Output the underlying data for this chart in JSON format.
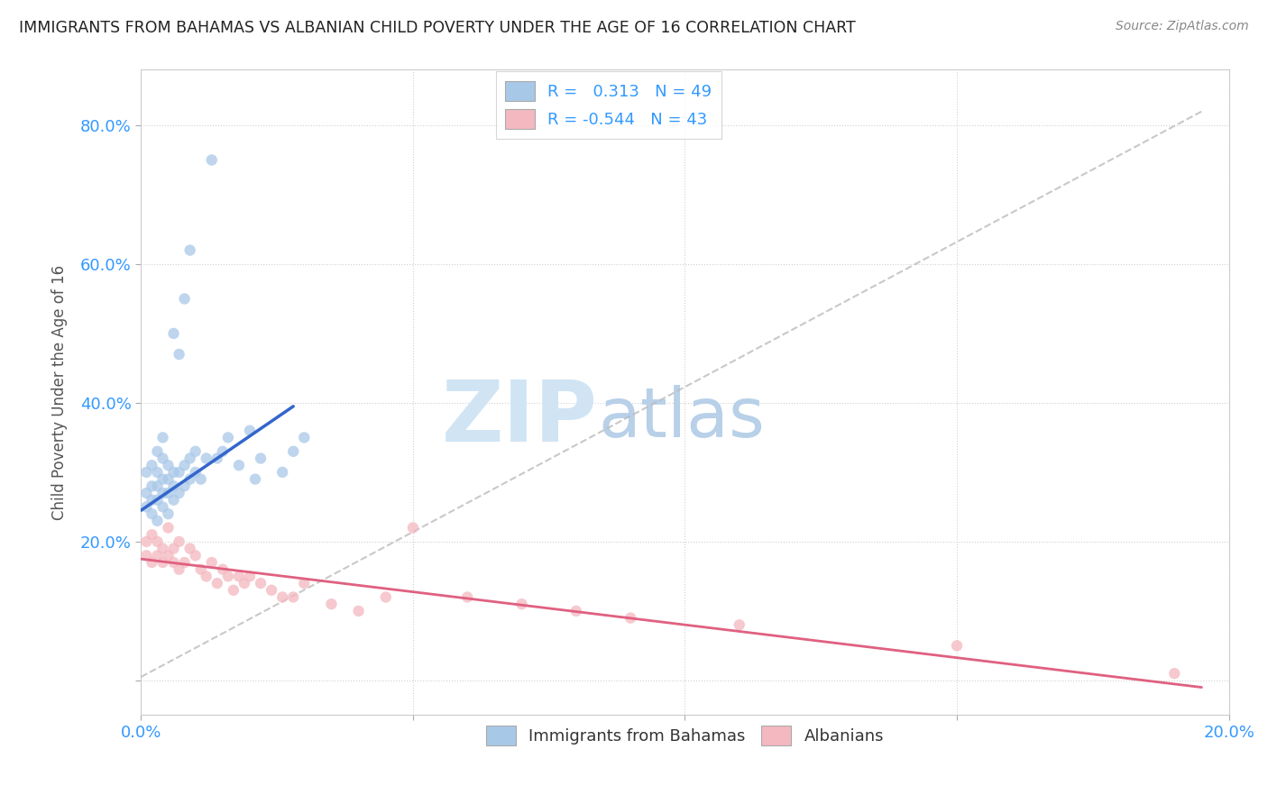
{
  "title": "IMMIGRANTS FROM BAHAMAS VS ALBANIAN CHILD POVERTY UNDER THE AGE OF 16 CORRELATION CHART",
  "source": "Source: ZipAtlas.com",
  "ylabel": "Child Poverty Under the Age of 16",
  "xlim": [
    0.0,
    0.2
  ],
  "ylim": [
    -0.05,
    0.88
  ],
  "xticks": [
    0.0,
    0.05,
    0.1,
    0.15,
    0.2
  ],
  "yticks": [
    0.0,
    0.2,
    0.4,
    0.6,
    0.8
  ],
  "xtick_labels": [
    "0.0%",
    "",
    "",
    "",
    "20.0%"
  ],
  "ytick_labels": [
    "",
    "20.0%",
    "40.0%",
    "60.0%",
    "80.0%"
  ],
  "r1": 0.313,
  "n1": 49,
  "r2": -0.544,
  "n2": 43,
  "series1_color": "#a8c8e8",
  "series2_color": "#f4b8c0",
  "trendline1_color": "#3366cc",
  "trendline2_color": "#e06080",
  "gray_dash_color": "#bbbbbb",
  "background_color": "#ffffff",
  "grid_color": "#cccccc",
  "watermark_zip": "ZIP",
  "watermark_atlas": "atlas",
  "watermark_color_zip": "#d0e4f4",
  "watermark_color_atlas": "#b8d0e8",
  "title_color": "#222222",
  "axis_label_color": "#555555",
  "tick_color": "#3399ff",
  "legend_label1": "Immigrants from Bahamas",
  "legend_label2": "Albanians",
  "blue_scatter_x": [
    0.001,
    0.001,
    0.001,
    0.002,
    0.002,
    0.002,
    0.002,
    0.003,
    0.003,
    0.003,
    0.003,
    0.003,
    0.004,
    0.004,
    0.004,
    0.004,
    0.004,
    0.005,
    0.005,
    0.005,
    0.005,
    0.006,
    0.006,
    0.006,
    0.006,
    0.007,
    0.007,
    0.007,
    0.008,
    0.008,
    0.008,
    0.009,
    0.009,
    0.009,
    0.01,
    0.01,
    0.011,
    0.012,
    0.013,
    0.014,
    0.015,
    0.016,
    0.018,
    0.02,
    0.021,
    0.022,
    0.026,
    0.028,
    0.03
  ],
  "blue_scatter_y": [
    0.25,
    0.27,
    0.3,
    0.24,
    0.26,
    0.28,
    0.31,
    0.23,
    0.26,
    0.28,
    0.3,
    0.33,
    0.25,
    0.27,
    0.29,
    0.32,
    0.35,
    0.24,
    0.27,
    0.29,
    0.31,
    0.26,
    0.28,
    0.3,
    0.5,
    0.27,
    0.3,
    0.47,
    0.28,
    0.31,
    0.55,
    0.29,
    0.32,
    0.62,
    0.3,
    0.33,
    0.29,
    0.32,
    0.75,
    0.32,
    0.33,
    0.35,
    0.31,
    0.36,
    0.29,
    0.32,
    0.3,
    0.33,
    0.35
  ],
  "pink_scatter_x": [
    0.001,
    0.001,
    0.002,
    0.002,
    0.003,
    0.003,
    0.004,
    0.004,
    0.005,
    0.005,
    0.006,
    0.006,
    0.007,
    0.007,
    0.008,
    0.009,
    0.01,
    0.011,
    0.012,
    0.013,
    0.014,
    0.015,
    0.016,
    0.017,
    0.018,
    0.019,
    0.02,
    0.022,
    0.024,
    0.026,
    0.028,
    0.03,
    0.035,
    0.04,
    0.045,
    0.05,
    0.06,
    0.07,
    0.08,
    0.09,
    0.11,
    0.15,
    0.19
  ],
  "pink_scatter_y": [
    0.18,
    0.2,
    0.17,
    0.21,
    0.18,
    0.2,
    0.17,
    0.19,
    0.22,
    0.18,
    0.17,
    0.19,
    0.16,
    0.2,
    0.17,
    0.19,
    0.18,
    0.16,
    0.15,
    0.17,
    0.14,
    0.16,
    0.15,
    0.13,
    0.15,
    0.14,
    0.15,
    0.14,
    0.13,
    0.12,
    0.12,
    0.14,
    0.11,
    0.1,
    0.12,
    0.22,
    0.12,
    0.11,
    0.1,
    0.09,
    0.08,
    0.05,
    0.01
  ],
  "blue_trend_x": [
    0.0,
    0.028
  ],
  "blue_trend_y": [
    0.245,
    0.395
  ],
  "pink_trend_x": [
    0.0,
    0.195
  ],
  "pink_trend_y": [
    0.175,
    -0.01
  ],
  "gray_trend_x": [
    0.0,
    0.195
  ],
  "gray_trend_y": [
    0.005,
    0.82
  ]
}
